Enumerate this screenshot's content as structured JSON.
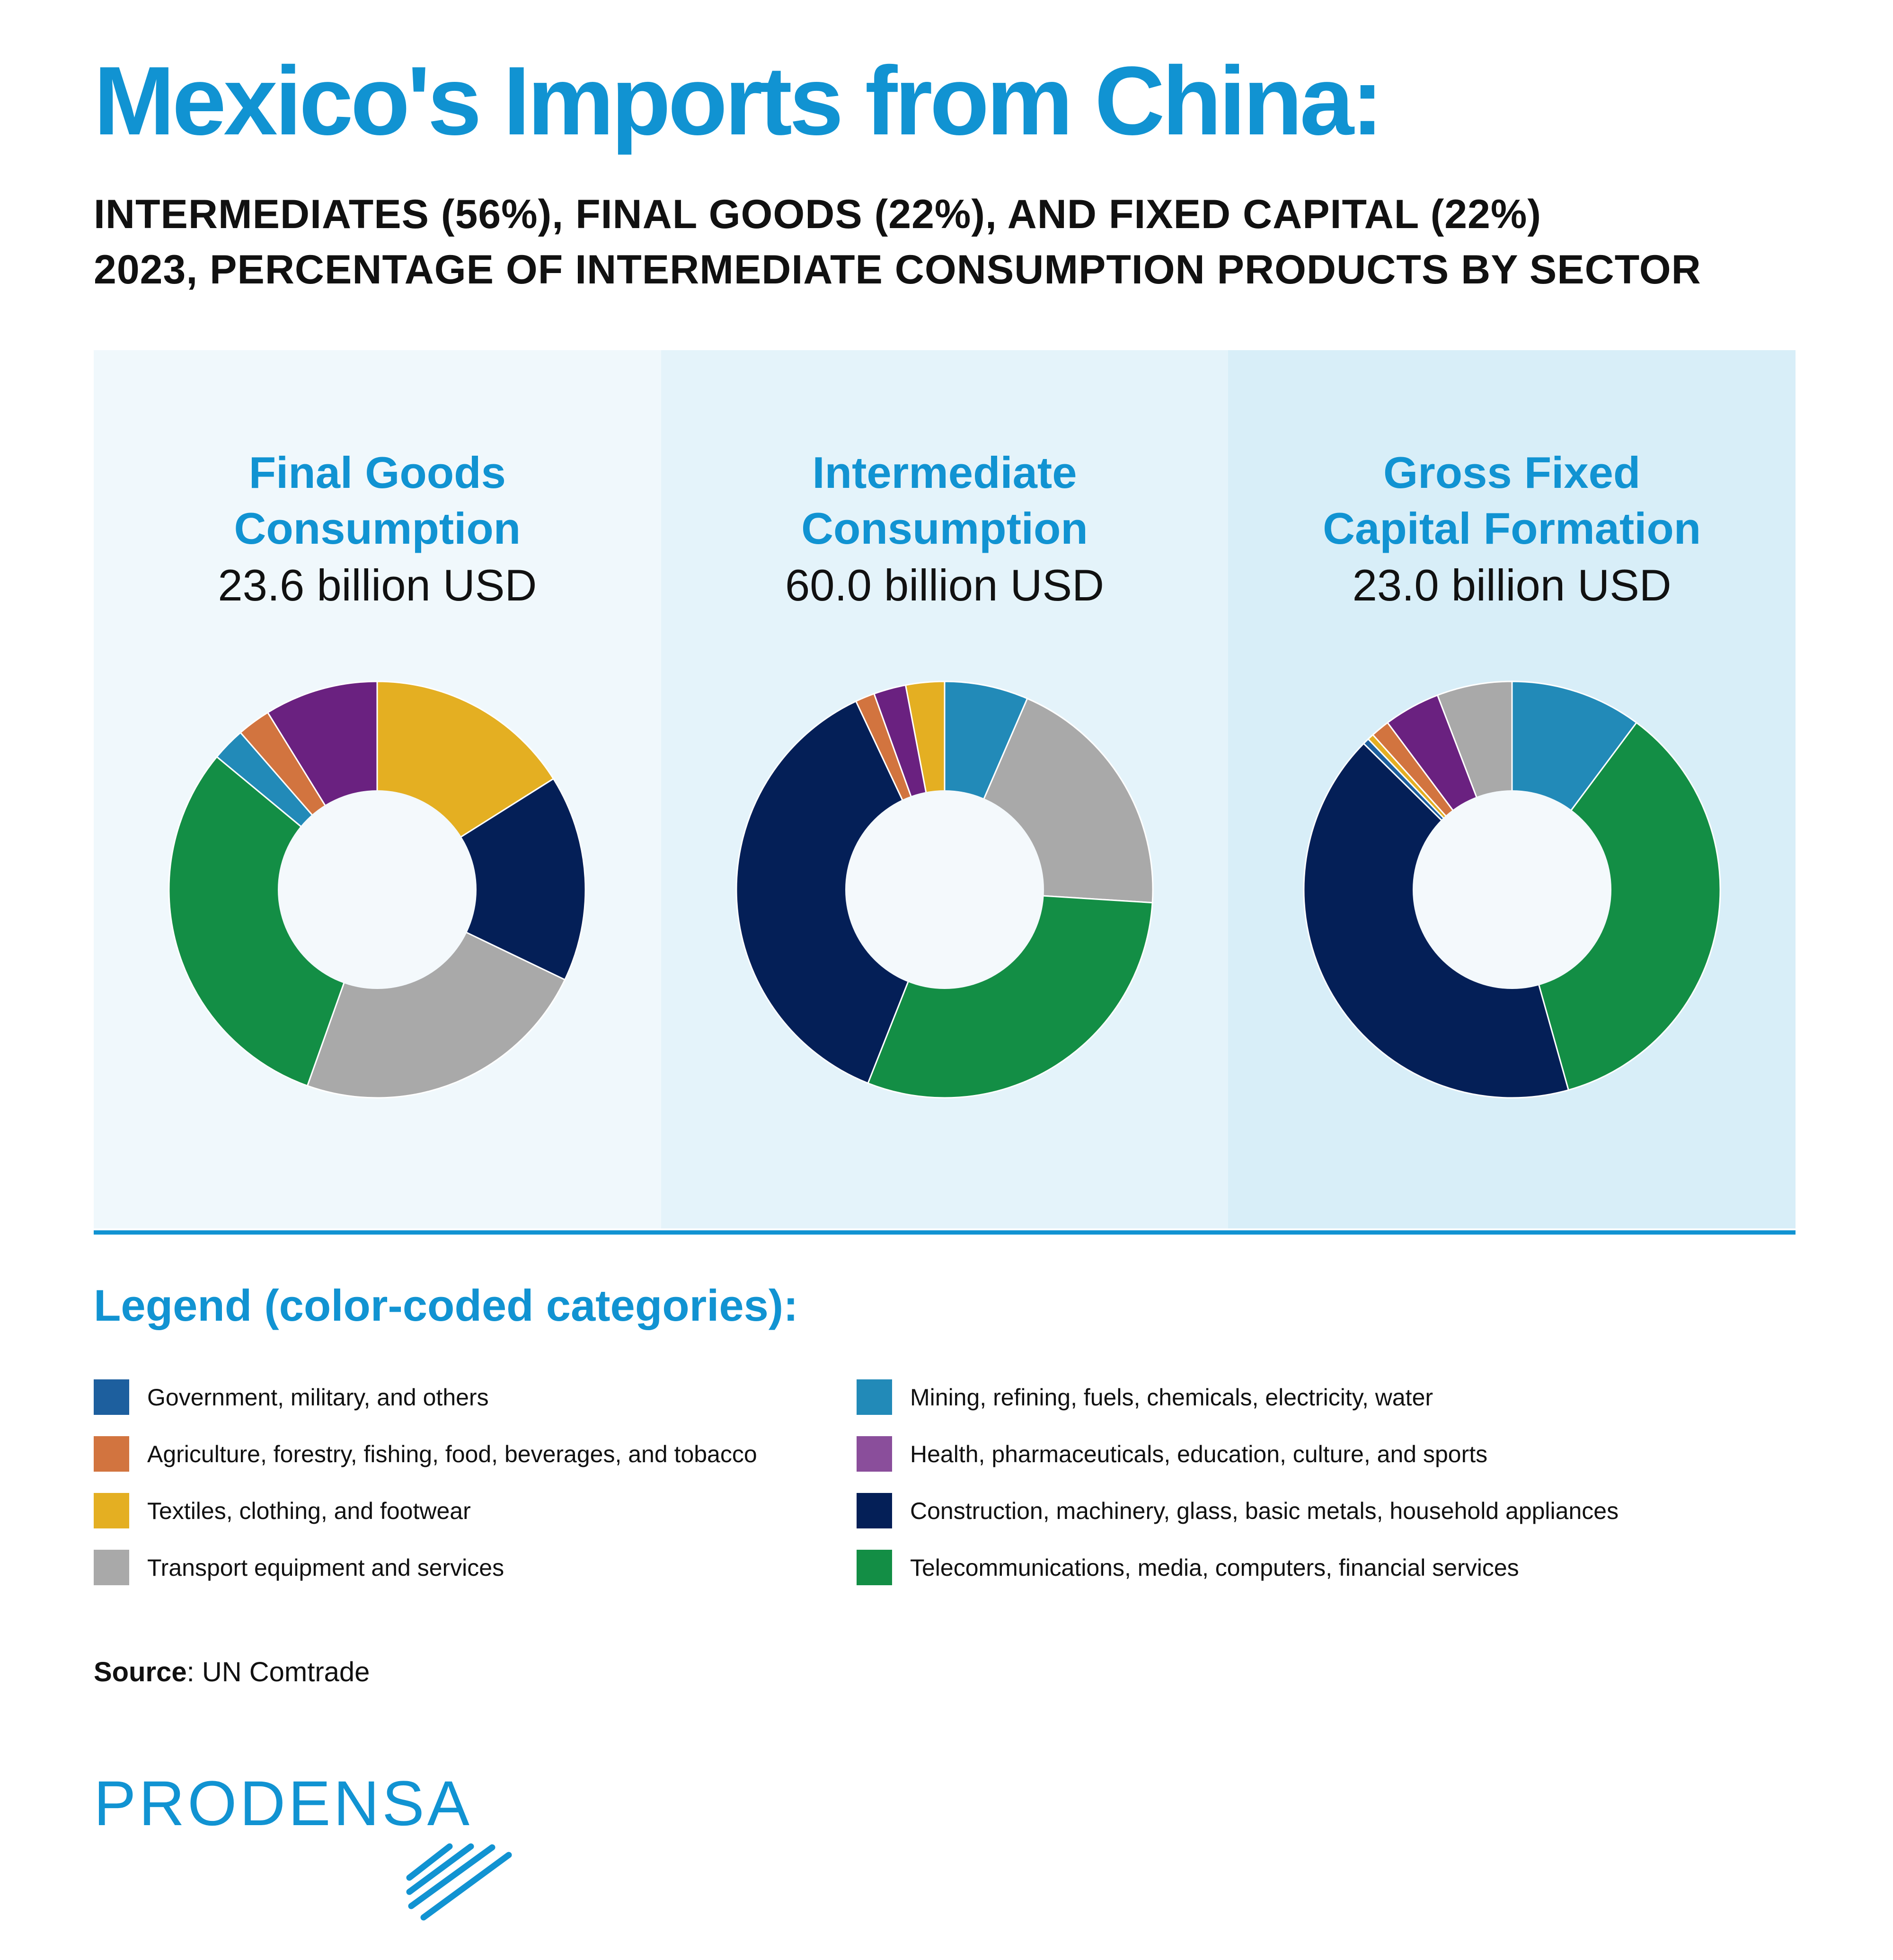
{
  "title": "Mexico's Imports from China:",
  "subtitle": {
    "line1": "INTERMEDIATES (56%), FINAL GOODS (22%), AND FIXED CAPITAL (22%)",
    "line2": "2023, PERCENTAGE OF INTERMEDIATE CONSUMPTION PRODUCTS BY SECTOR"
  },
  "colors": {
    "accent": "#1193d2",
    "panel_bg": [
      "#f0f8fc",
      "#e4f3fa",
      "#d8eef8"
    ],
    "donut_hole": "#f4f9fc"
  },
  "categories": [
    {
      "key": "gov",
      "label": "Government, military, and others",
      "color": "#1d5f9e"
    },
    {
      "key": "agri",
      "label": "Agriculture, forestry, fishing, food, beverages, and tobacco",
      "color": "#d2743f"
    },
    {
      "key": "textiles",
      "label": "Textiles, clothing, and footwear",
      "color": "#e4af22"
    },
    {
      "key": "transport",
      "label": "Transport equipment and services",
      "color": "#a9a9a9"
    },
    {
      "key": "mining",
      "label": "Mining, refining, fuels, chemicals, electricity, water",
      "color": "#228ab8"
    },
    {
      "key": "health",
      "label": "Health, pharmaceuticals, education, culture, and sports",
      "color": "#6a2180"
    },
    {
      "key": "construction",
      "label": "Construction, machinery, glass, basic metals, household appliances",
      "color": "#041f57"
    },
    {
      "key": "telecom",
      "label": "Telecommunications, media, computers, financial services",
      "color": "#138e45"
    }
  ],
  "legend": {
    "title": "Legend (color-coded categories):",
    "left": [
      {
        "label": "Government, military, and others",
        "color": "#1d5f9e"
      },
      {
        "label": "Agriculture, forestry, fishing, food, beverages, and tobacco",
        "color": "#d2743f"
      },
      {
        "label": "Textiles, clothing, and footwear",
        "color": "#e4af22"
      },
      {
        "label": "Transport equipment and services",
        "color": "#a9a9a9"
      }
    ],
    "right": [
      {
        "label": "Mining, refining, fuels, chemicals, electricity, water",
        "color": "#228ab8"
      },
      {
        "label": "Health, pharmaceuticals, education, culture, and sports",
        "color": "#8a4e9b"
      },
      {
        "label": "Construction, machinery, glass, basic metals, household appliances",
        "color": "#041f57"
      },
      {
        "label": "Telecommunications, media, computers, financial services",
        "color": "#138e45"
      }
    ]
  },
  "chart_data": [
    {
      "type": "pie",
      "title": "Final Goods\nConsumption",
      "total": "23.6 billion USD",
      "series": [
        {
          "key": "textiles",
          "value": 15.5
        },
        {
          "key": "construction",
          "value": 15.5
        },
        {
          "key": "transport",
          "value": 22.5
        },
        {
          "key": "telecom",
          "value": 29.5
        },
        {
          "key": "mining",
          "value": 2.5
        },
        {
          "key": "agri",
          "value": 2.5
        },
        {
          "key": "health",
          "value": 8.5
        }
      ]
    },
    {
      "type": "pie",
      "title": "Intermediate\nConsumption",
      "total": "60.0 billion USD",
      "series": [
        {
          "key": "mining",
          "value": 6.5
        },
        {
          "key": "transport",
          "value": 19.5
        },
        {
          "key": "telecom",
          "value": 30.0
        },
        {
          "key": "construction",
          "value": 37.0
        },
        {
          "key": "agri",
          "value": 1.5
        },
        {
          "key": "health",
          "value": 2.5
        },
        {
          "key": "textiles",
          "value": 3.0
        }
      ]
    },
    {
      "type": "pie",
      "title": "Gross Fixed\nCapital Formation",
      "total": "23.0 billion USD",
      "series": [
        {
          "key": "mining",
          "value": 10.5
        },
        {
          "key": "telecom",
          "value": 36.5
        },
        {
          "key": "construction",
          "value": 43.0
        },
        {
          "key": "gov",
          "value": 0.5
        },
        {
          "key": "textiles",
          "value": 0.5
        },
        {
          "key": "agri",
          "value": 1.5
        },
        {
          "key": "health",
          "value": 4.5
        },
        {
          "key": "transport",
          "value": 6.0
        }
      ]
    }
  ],
  "source": {
    "label": "Source",
    "text": ": UN Comtrade"
  },
  "logo": {
    "text": "PRODENSA"
  }
}
